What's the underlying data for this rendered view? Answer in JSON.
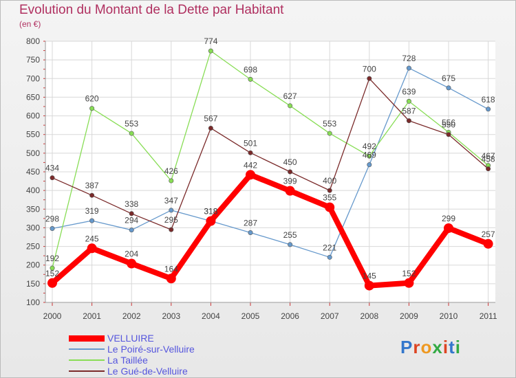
{
  "chart_data": {
    "type": "line",
    "title": "Evolution du Montant de la Dette par Habitant",
    "unit_label": "(en €)",
    "x": [
      "2000",
      "2001",
      "2002",
      "2003",
      "2004",
      "2005",
      "2006",
      "2007",
      "2008",
      "2009",
      "2010",
      "2011"
    ],
    "ylim": [
      100,
      800
    ],
    "yticks": [
      100,
      150,
      200,
      250,
      300,
      350,
      400,
      450,
      500,
      550,
      600,
      650,
      700,
      750,
      800
    ],
    "grid": true,
    "legend_position": "bottom-left",
    "series": [
      {
        "name": "VELLUIRE",
        "color": "#ff0000",
        "emphasis": true,
        "values": [
          152,
          245,
          204,
          164,
          318,
          442,
          399,
          355,
          145,
          152,
          299,
          257
        ],
        "labels": [
          "152",
          "245",
          "204",
          "164",
          "318",
          "442",
          "399",
          "355",
          "145",
          "152",
          "299",
          "257"
        ]
      },
      {
        "name": "Le Poiré-sur-Velluire",
        "color": "#6699cc",
        "emphasis": false,
        "values": [
          298,
          319,
          294,
          347,
          318,
          287,
          255,
          221,
          469,
          728,
          675,
          618
        ],
        "labels": [
          "298",
          "319",
          "294",
          "347",
          "318",
          "287",
          "255",
          "221",
          "469",
          "728",
          "675",
          "618"
        ]
      },
      {
        "name": "La Taillée",
        "color": "#88dd55",
        "emphasis": false,
        "values": [
          192,
          620,
          553,
          426,
          774,
          698,
          627,
          553,
          492,
          639,
          556,
          467
        ],
        "labels": [
          "192",
          "620",
          "553",
          "426",
          "774",
          "698",
          "627",
          "553",
          "492",
          "639",
          "556",
          "467"
        ]
      },
      {
        "name": "Le Gué-de-Velluire",
        "color": "#7a2a2a",
        "emphasis": false,
        "values": [
          434,
          387,
          338,
          295,
          567,
          501,
          450,
          400,
          700,
          587,
          550,
          458
        ],
        "labels": [
          "434",
          "387",
          "338",
          "295",
          "567",
          "501",
          "450",
          "400",
          "700",
          "587",
          "550",
          "458"
        ]
      }
    ]
  },
  "logo_text": "Proxiti"
}
